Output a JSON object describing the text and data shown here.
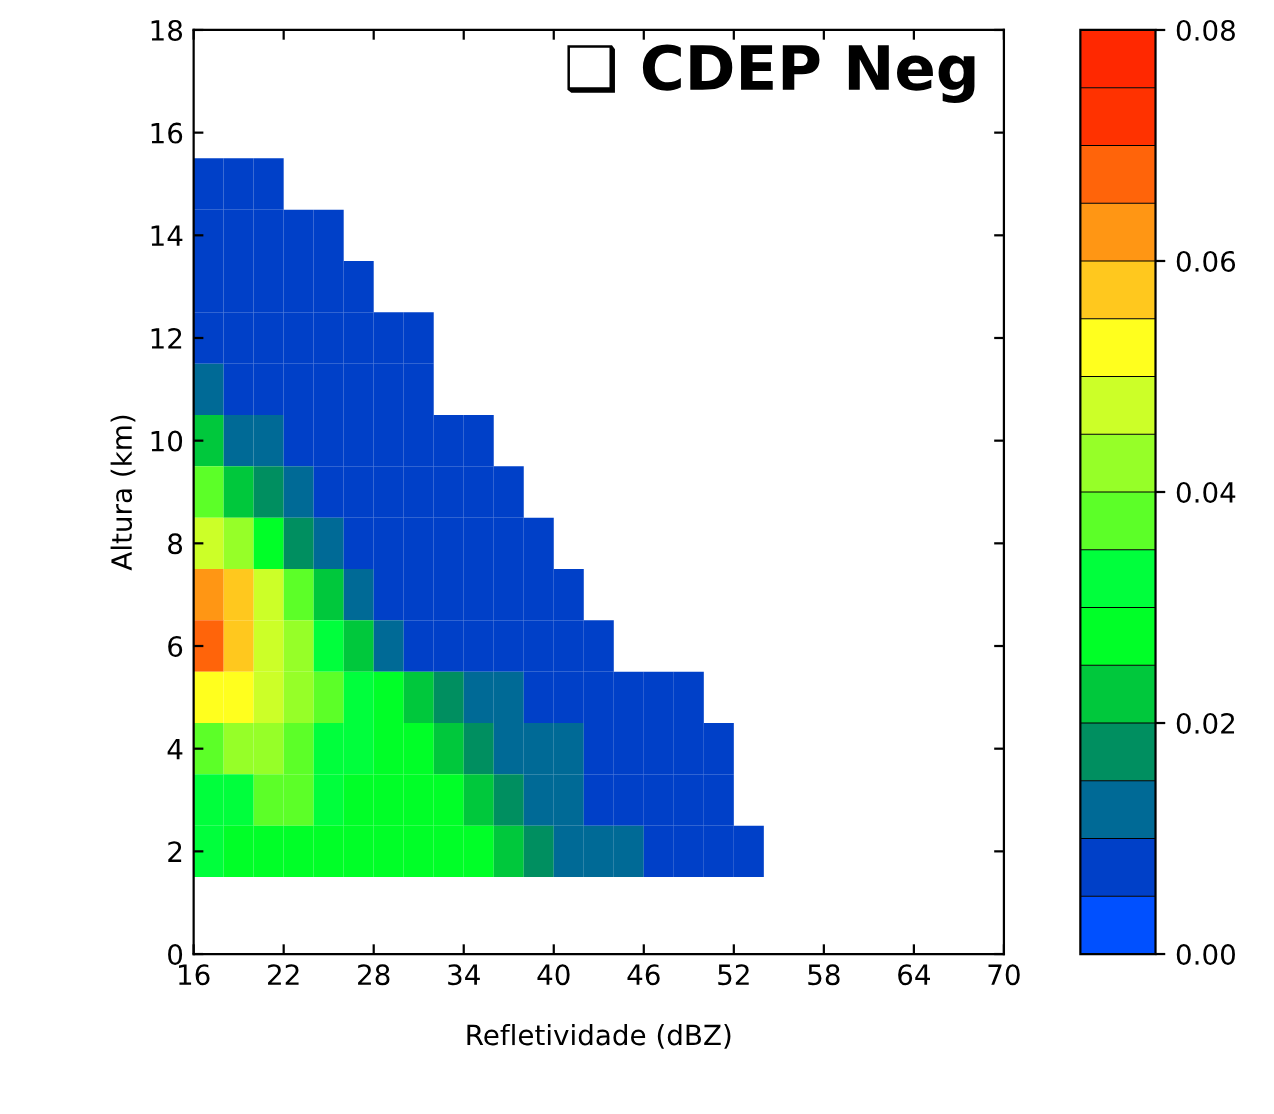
{
  "chart_data": {
    "type": "heatmap",
    "title": "❑ CDEP Neg",
    "xlabel": "Refletividade (dBZ)",
    "ylabel": "Altura (km)",
    "x": [
      17,
      19,
      21,
      23,
      25,
      27,
      29,
      31,
      33,
      35,
      37,
      39,
      41,
      43,
      45,
      47,
      49,
      51,
      53
    ],
    "y": [
      15,
      14,
      13,
      12,
      11,
      10,
      9,
      8,
      7,
      6,
      5,
      4,
      3,
      2
    ],
    "cells": [
      [
        0.0075,
        0.0075,
        0.0075,
        null,
        null,
        null,
        null,
        null,
        null,
        null,
        null,
        null,
        null,
        null,
        null,
        null,
        null,
        null,
        null
      ],
      [
        0.0075,
        0.0075,
        0.0075,
        0.0075,
        0.0075,
        null,
        null,
        null,
        null,
        null,
        null,
        null,
        null,
        null,
        null,
        null,
        null,
        null,
        null
      ],
      [
        0.0075,
        0.0075,
        0.0075,
        0.0075,
        0.0075,
        0.0075,
        null,
        null,
        null,
        null,
        null,
        null,
        null,
        null,
        null,
        null,
        null,
        null,
        null
      ],
      [
        0.0075,
        0.0075,
        0.0075,
        0.0075,
        0.0075,
        0.0075,
        0.0075,
        0.0075,
        null,
        null,
        null,
        null,
        null,
        null,
        null,
        null,
        null,
        null,
        null
      ],
      [
        0.0125,
        0.0075,
        0.0075,
        0.0075,
        0.0075,
        0.0075,
        0.0075,
        0.0075,
        null,
        null,
        null,
        null,
        null,
        null,
        null,
        null,
        null,
        null,
        null
      ],
      [
        0.0225,
        0.0125,
        0.0125,
        0.0075,
        0.0075,
        0.0075,
        0.0075,
        0.0075,
        0.0075,
        0.0075,
        null,
        null,
        null,
        null,
        null,
        null,
        null,
        null,
        null
      ],
      [
        0.0375,
        0.0225,
        0.0175,
        0.0125,
        0.0075,
        0.0075,
        0.0075,
        0.0075,
        0.0075,
        0.0075,
        0.0075,
        null,
        null,
        null,
        null,
        null,
        null,
        null,
        null
      ],
      [
        0.0475,
        0.0425,
        0.0275,
        0.0175,
        0.0125,
        0.0075,
        0.0075,
        0.0075,
        0.0075,
        0.0075,
        0.0075,
        0.0075,
        null,
        null,
        null,
        null,
        null,
        null,
        null
      ],
      [
        0.0625,
        0.0575,
        0.0475,
        0.0375,
        0.0225,
        0.0125,
        0.0075,
        0.0075,
        0.0075,
        0.0075,
        0.0075,
        0.0075,
        0.0075,
        null,
        null,
        null,
        null,
        null,
        null
      ],
      [
        0.0675,
        0.0575,
        0.0475,
        0.0425,
        0.0325,
        0.0225,
        0.0125,
        0.0075,
        0.0075,
        0.0075,
        0.0075,
        0.0075,
        0.0075,
        0.0075,
        null,
        null,
        null,
        null,
        null
      ],
      [
        0.0525,
        0.0525,
        0.0475,
        0.0425,
        0.0375,
        0.0325,
        0.0275,
        0.0225,
        0.0175,
        0.0125,
        0.0125,
        0.0075,
        0.0075,
        0.0075,
        0.0075,
        0.0075,
        0.0075,
        null,
        null
      ],
      [
        0.0375,
        0.0425,
        0.0425,
        0.0375,
        0.0325,
        0.0325,
        0.0275,
        0.0275,
        0.0225,
        0.0175,
        0.0125,
        0.0125,
        0.0125,
        0.0075,
        0.0075,
        0.0075,
        0.0075,
        0.0075,
        null
      ],
      [
        0.0325,
        0.0325,
        0.0375,
        0.0375,
        0.0325,
        0.0275,
        0.0275,
        0.0275,
        0.0275,
        0.0225,
        0.0175,
        0.0125,
        0.0125,
        0.0075,
        0.0075,
        0.0075,
        0.0075,
        0.0075,
        null
      ],
      [
        0.0325,
        0.0275,
        0.0275,
        0.0275,
        0.0275,
        0.0275,
        0.0275,
        0.0275,
        0.0275,
        0.0275,
        0.0225,
        0.0175,
        0.0125,
        0.0125,
        0.0125,
        0.0075,
        0.0075,
        0.0075,
        0.0075
      ]
    ],
    "colors": [
      "#0050ff",
      "#0040c8",
      "#006a96",
      "#008f60",
      "#00c83c",
      "#00ff28",
      "#00ff3c",
      "#5cff28",
      "#96ff28",
      "#ccff28",
      "#ffff1e",
      "#ffc81e",
      "#ff9614",
      "#ff640a",
      "#ff3200",
      "#ff2800"
    ],
    "clim": [
      0,
      0.08
    ],
    "cticks": [
      {
        "value": 0,
        "label": "0.00"
      },
      {
        "value": 0.02,
        "label": "0.02"
      },
      {
        "value": 0.04,
        "label": "0.04"
      },
      {
        "value": 0.06,
        "label": "0.06"
      },
      {
        "value": 0.08,
        "label": "0.08"
      }
    ],
    "xlim": [
      16,
      70
    ],
    "xticks": [
      16,
      22,
      28,
      34,
      40,
      46,
      52,
      58,
      64,
      70
    ],
    "ylim": [
      0,
      18
    ],
    "yticks": [
      0,
      2,
      4,
      6,
      8,
      10,
      12,
      14,
      16,
      18
    ],
    "grid": false
  }
}
